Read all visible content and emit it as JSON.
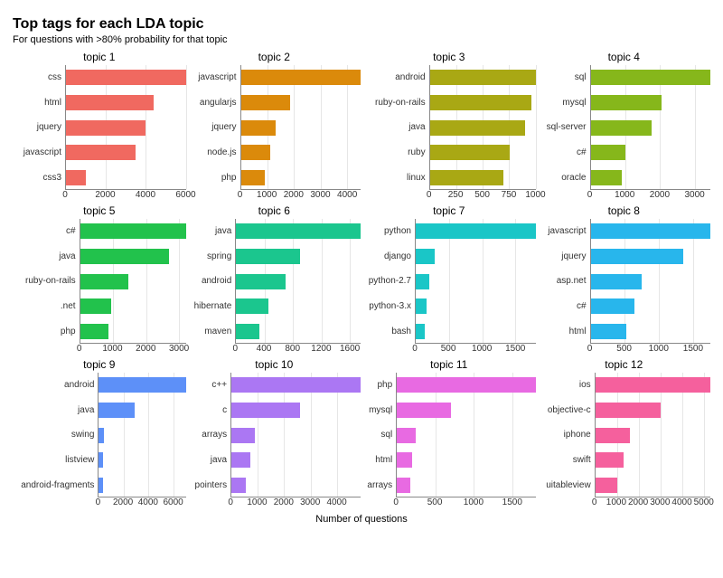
{
  "title": "Top tags for each LDA topic",
  "subtitle": "For questions with >80% probability for that topic",
  "xlabel": "Number of questions",
  "plot_background": "#ffffff",
  "grid_color": "#e6e6e6",
  "axis_color": "#888888",
  "title_fontsize": 16,
  "subtitle_fontsize": 11,
  "panel_title_fontsize": 12,
  "label_fontsize": 10,
  "panels": [
    {
      "title": "topic 1",
      "color": "#f06960",
      "xmax": 6000,
      "xticks": [
        0,
        2000,
        4000,
        6000
      ],
      "cats": [
        "css",
        "html",
        "jquery",
        "javascript",
        "css3"
      ],
      "vals": [
        6000,
        4400,
        4000,
        3500,
        1000
      ]
    },
    {
      "title": "topic 2",
      "color": "#db8a0b",
      "xmax": 4000,
      "xticks": [
        0,
        1000,
        2000,
        3000,
        4000
      ],
      "cats": [
        "javascript",
        "angularjs",
        "jquery",
        "node.js",
        "php"
      ],
      "vals": [
        4500,
        1850,
        1300,
        1100,
        900
      ]
    },
    {
      "title": "topic 3",
      "color": "#a9a814",
      "xmax": 1000,
      "xticks": [
        0,
        250,
        500,
        750,
        1000
      ],
      "cats": [
        "android",
        "ruby-on-rails",
        "java",
        "ruby",
        "linux"
      ],
      "vals": [
        1000,
        960,
        900,
        760,
        700
      ]
    },
    {
      "title": "topic 4",
      "color": "#86b71b",
      "xmax": 3000,
      "xticks": [
        0,
        1000,
        2000,
        3000
      ],
      "cats": [
        "sql",
        "mysql",
        "sql-server",
        "c#",
        "oracle"
      ],
      "vals": [
        3450,
        2050,
        1750,
        1000,
        900
      ]
    },
    {
      "title": "topic 5",
      "color": "#22c24c",
      "xmax": 3000,
      "xticks": [
        0,
        1000,
        2000,
        3000
      ],
      "cats": [
        "c#",
        "java",
        "ruby-on-rails",
        ".net",
        "php"
      ],
      "vals": [
        3200,
        2700,
        1450,
        950,
        850
      ]
    },
    {
      "title": "topic 6",
      "color": "#1bc68e",
      "xmax": 1600,
      "xticks": [
        0,
        400,
        800,
        1200,
        1600
      ],
      "cats": [
        "java",
        "spring",
        "android",
        "hibernate",
        "maven"
      ],
      "vals": [
        1750,
        900,
        700,
        450,
        330
      ]
    },
    {
      "title": "topic 7",
      "color": "#1ac6c7",
      "xmax": 1500,
      "xticks": [
        0,
        500,
        1000,
        1500
      ],
      "cats": [
        "python",
        "django",
        "python-2.7",
        "python-3.x",
        "bash"
      ],
      "vals": [
        1800,
        280,
        200,
        160,
        140
      ]
    },
    {
      "title": "topic 8",
      "color": "#28b6ec",
      "xmax": 1500,
      "xticks": [
        0,
        500,
        1000,
        1500
      ],
      "cats": [
        "javascript",
        "jquery",
        "asp.net",
        "c#",
        "html"
      ],
      "vals": [
        1750,
        1350,
        750,
        640,
        520
      ]
    },
    {
      "title": "topic 9",
      "color": "#5d90f8",
      "xmax": 6000,
      "xticks": [
        0,
        2000,
        4000,
        6000
      ],
      "cats": [
        "android",
        "java",
        "swing",
        "listview",
        "android-fragments"
      ],
      "vals": [
        7000,
        2850,
        400,
        350,
        320
      ]
    },
    {
      "title": "topic 10",
      "color": "#ab77f3",
      "xmax": 4000,
      "xticks": [
        0,
        1000,
        2000,
        3000,
        4000
      ],
      "cats": [
        "c++",
        "c",
        "arrays",
        "java",
        "pointers"
      ],
      "vals": [
        4900,
        2600,
        900,
        700,
        550
      ]
    },
    {
      "title": "topic 11",
      "color": "#e86ae2",
      "xmax": 1500,
      "xticks": [
        0,
        500,
        1000,
        1500
      ],
      "cats": [
        "php",
        "mysql",
        "sql",
        "html",
        "arrays"
      ],
      "vals": [
        1800,
        700,
        250,
        200,
        170
      ]
    },
    {
      "title": "topic 12",
      "color": "#f5609d",
      "xmax": 5000,
      "xticks": [
        0,
        1000,
        2000,
        3000,
        4000,
        5000
      ],
      "cats": [
        "ios",
        "objective-c",
        "iphone",
        "swift",
        "uitableview"
      ],
      "vals": [
        5300,
        3000,
        1600,
        1300,
        1000
      ]
    }
  ]
}
